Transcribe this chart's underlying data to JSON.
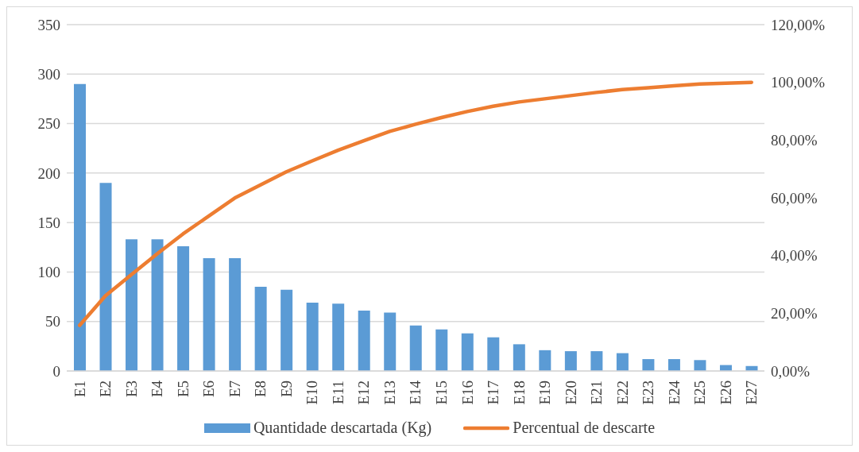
{
  "chart_data": {
    "type": "bar",
    "categories": [
      "E1",
      "E2",
      "E3",
      "E4",
      "E5",
      "E6",
      "E7",
      "E8",
      "E9",
      "E10",
      "E11",
      "E12",
      "E13",
      "E14",
      "E15",
      "E16",
      "E17",
      "E18",
      "E19",
      "E20",
      "E21",
      "E22",
      "E23",
      "E24",
      "E25",
      "E26",
      "E27"
    ],
    "series": [
      {
        "name": "Quantidade descartada (Kg)",
        "color": "#5b9bd5",
        "values": [
          290,
          190,
          133,
          133,
          126,
          114,
          114,
          85,
          82,
          69,
          68,
          61,
          59,
          46,
          42,
          38,
          34,
          27,
          21,
          20,
          20,
          18,
          12,
          12,
          11,
          6,
          5
        ]
      },
      {
        "name": "Percentual de descarte",
        "type": "line",
        "axis": "y2",
        "color": "#ed7d31",
        "values": [
          15.8,
          26.1,
          33.4,
          40.6,
          47.5,
          53.7,
          59.9,
          64.5,
          69.0,
          72.8,
          76.5,
          79.8,
          83.0,
          85.5,
          87.8,
          89.9,
          91.7,
          93.2,
          94.3,
          95.4,
          96.5,
          97.5,
          98.1,
          98.8,
          99.4,
          99.7,
          100
        ]
      }
    ],
    "ylim": [
      0,
      350
    ],
    "yticks": [
      0,
      50,
      100,
      150,
      200,
      250,
      300,
      350
    ],
    "y2lim": [
      0,
      120
    ],
    "y2ticks": [
      {
        "value": 0,
        "label": "0,00%"
      },
      {
        "value": 20,
        "label": "20,00%"
      },
      {
        "value": 40,
        "label": "40,00%"
      },
      {
        "value": 60,
        "label": "60,00%"
      },
      {
        "value": 80,
        "label": "80,00%"
      },
      {
        "value": 100,
        "label": "100,00%"
      },
      {
        "value": 120,
        "label": "120,00%"
      }
    ],
    "grid": "y",
    "legend": "bottom",
    "marker": "none",
    "line_style": "solid"
  }
}
